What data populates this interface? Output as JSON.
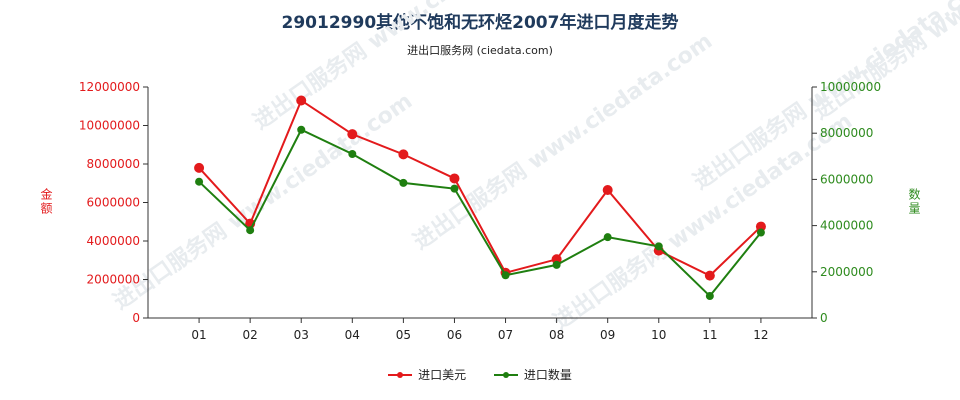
{
  "title": "29012990其他不饱和无环烃2007年进口月度走势",
  "subtitle": "进出口服务网 (ciedata.com)",
  "watermark": "进出口服务网 www.ciedata.com",
  "chart_data": {
    "type": "line",
    "categories": [
      "01",
      "02",
      "03",
      "04",
      "05",
      "06",
      "07",
      "08",
      "09",
      "10",
      "11",
      "12"
    ],
    "y_left": {
      "label": "金额",
      "min": 0,
      "max": 12000000,
      "ticks": [
        0,
        2000000,
        4000000,
        6000000,
        8000000,
        10000000,
        12000000
      ],
      "color": "#e31a1c"
    },
    "y_right": {
      "label": "数量",
      "min": 0,
      "max": 10000000,
      "ticks": [
        0,
        2000000,
        4000000,
        6000000,
        8000000,
        10000000
      ],
      "color": "#2e8b1e"
    },
    "series": [
      {
        "name": "进口美元",
        "axis": "left",
        "color": "#e31a1c",
        "values": [
          7800000,
          4900000,
          11300000,
          9550000,
          8500000,
          7250000,
          2350000,
          3050000,
          6650000,
          3500000,
          2200000,
          4750000
        ]
      },
      {
        "name": "进口数量",
        "axis": "right",
        "color": "#1f7f10",
        "values": [
          5900000,
          3800000,
          8150000,
          7100000,
          5850000,
          5600000,
          1850000,
          2300000,
          3500000,
          3100000,
          950000,
          3700000
        ]
      }
    ],
    "grid": false,
    "legend": "bottom-center"
  }
}
